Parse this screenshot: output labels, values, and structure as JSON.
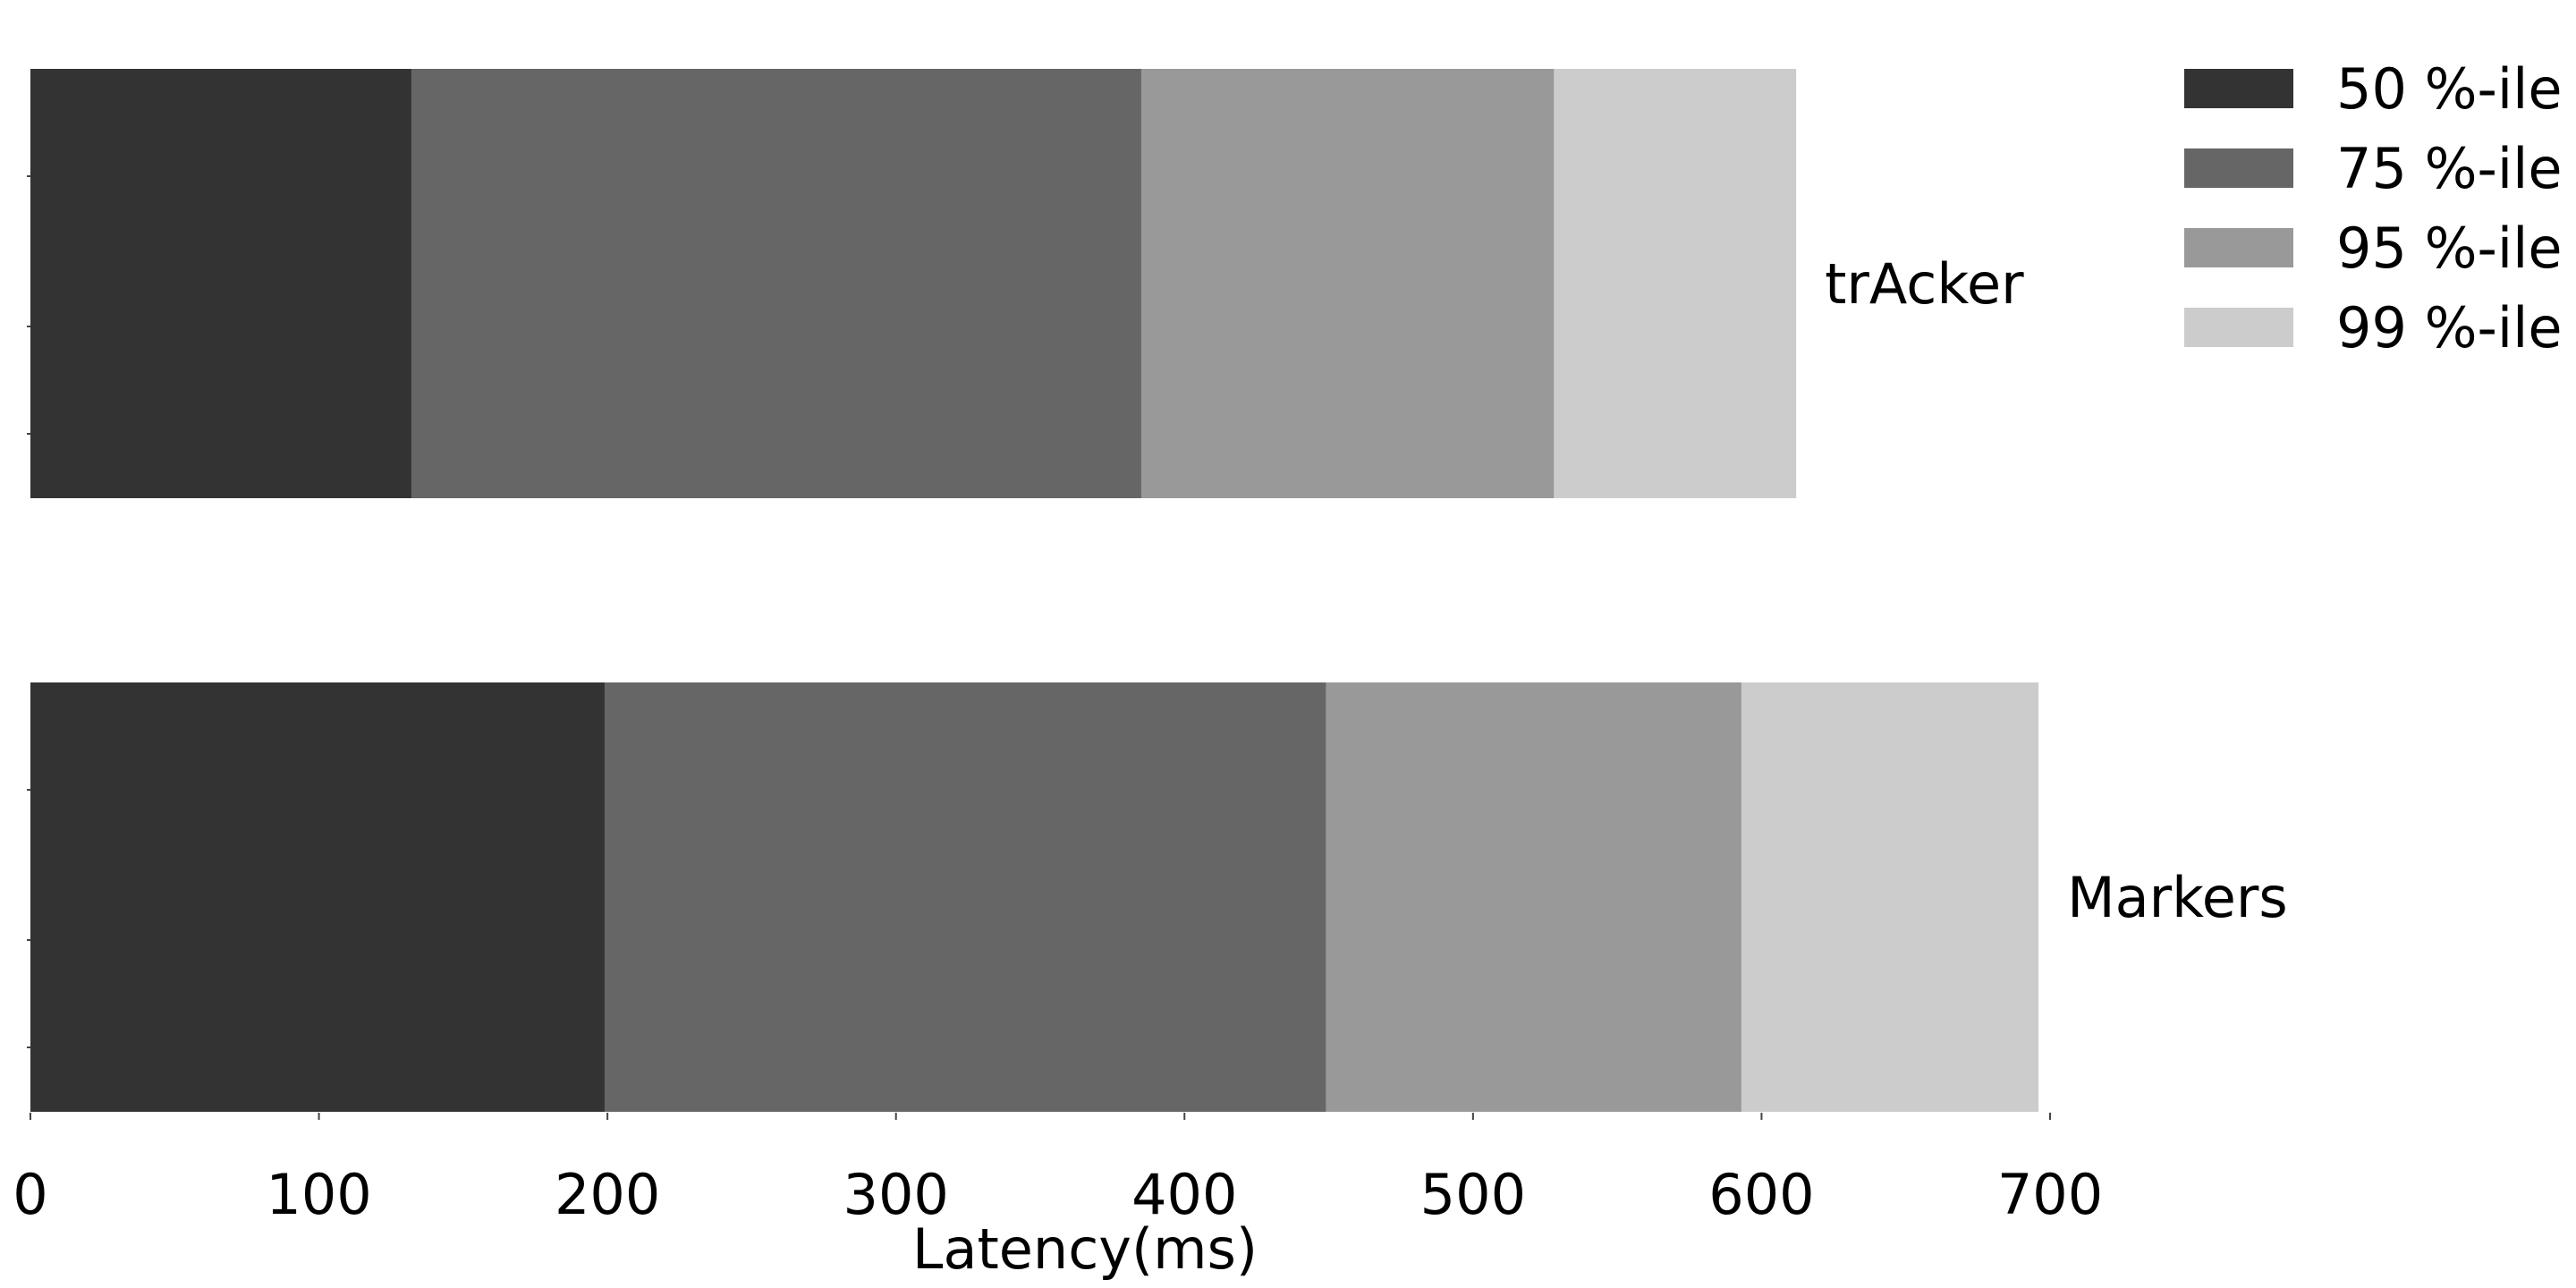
{
  "chart_data": {
    "type": "bar",
    "orientation": "horizontal",
    "stacked": false,
    "overlaid": true,
    "categories": [
      "trAcker",
      "Markers"
    ],
    "series": [
      {
        "name": "50 %-ile",
        "color": "#333333",
        "values": [
          132,
          199
        ]
      },
      {
        "name": "75 %-ile",
        "color": "#666666",
        "values": [
          385,
          449
        ]
      },
      {
        "name": "95 %-ile",
        "color": "#999999",
        "values": [
          528,
          593
        ]
      },
      {
        "name": "99 %-ile",
        "color": "#cccccc",
        "values": [
          612,
          696
        ]
      }
    ],
    "xlabel": "Latency(ms)",
    "ylabel": "",
    "xlim": [
      0,
      700
    ],
    "xticks": [
      "0",
      "100",
      "200",
      "300",
      "400",
      "500",
      "600",
      "700"
    ],
    "grid": false,
    "legend_position": "top-right",
    "bar_labels_position": "right-of-bar"
  }
}
